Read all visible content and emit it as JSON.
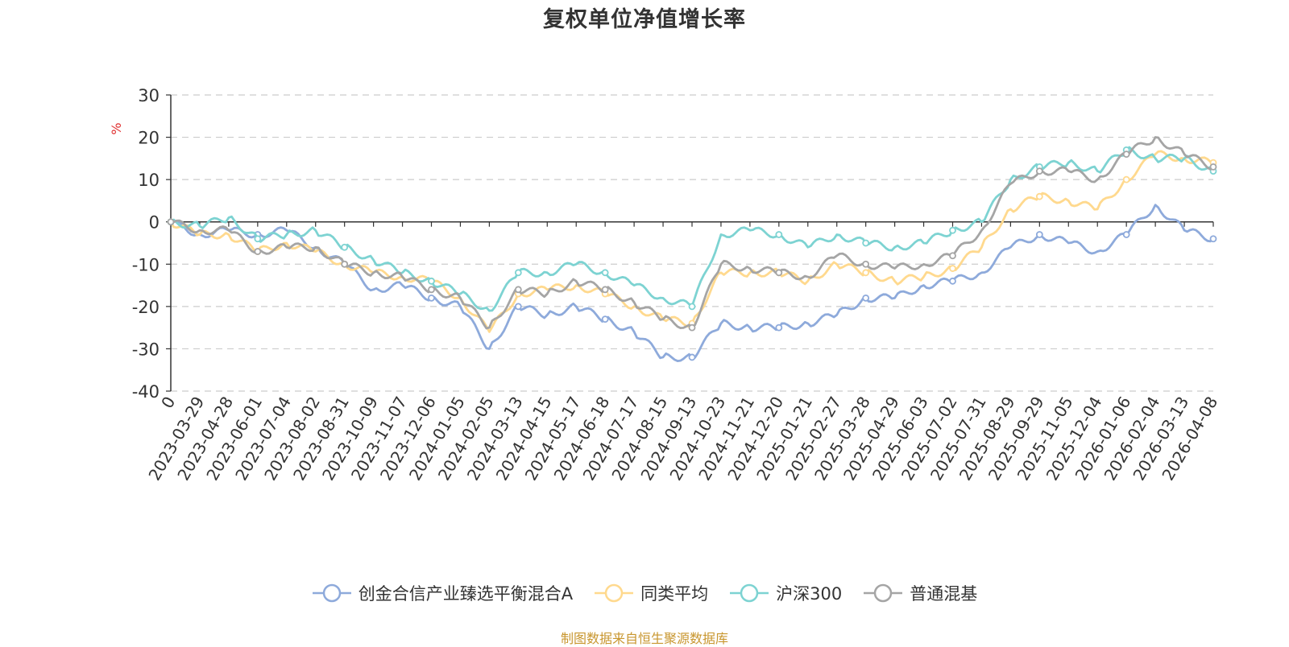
{
  "page": {
    "title": "复权单位净值增长率",
    "source_note": "制图数据来自恒生聚源数据库"
  },
  "chart_data": {
    "type": "line",
    "title": "复权单位净值增长率",
    "ylabel": "%",
    "ylim": [
      -40,
      30
    ],
    "yticks": [
      30,
      20,
      10,
      0,
      -10,
      -20,
      -30,
      -40
    ],
    "grid": true,
    "legend_position": "bottom",
    "x_tick_labels": [
      "0",
      "2023-03-29",
      "2023-04-28",
      "2023-06-01",
      "2023-07-04",
      "2023-08-02",
      "2023-08-31",
      "2023-10-09",
      "2023-11-07",
      "2023-12-06",
      "2024-01-05",
      "2024-02-05",
      "2024-03-13",
      "2024-04-15",
      "2024-05-17",
      "2024-06-18",
      "2024-07-17",
      "2024-08-15",
      "2024-09-13",
      "2024-10-23",
      "2024-11-21",
      "2024-12-20",
      "2025-01-21",
      "2025-02-27",
      "2025-03-28",
      "2025-04-29",
      "2025-06-03",
      "2025-07-02",
      "2025-07-31",
      "2025-08-29",
      "2025-09-29",
      "2025-11-05",
      "2025-12-04",
      "2026-01-06",
      "2026-02-04",
      "2026-03-13",
      "2026-04-08"
    ],
    "series": [
      {
        "name": "创金合信产业臻选平衡混合A",
        "color": "#8eaadb",
        "values": [
          0,
          -3,
          -2,
          -3,
          -2,
          -6,
          -10,
          -16,
          -15,
          -18,
          -20,
          -30,
          -20,
          -22,
          -20,
          -23,
          -26,
          -32,
          -32,
          -24,
          -25,
          -25,
          -24,
          -22,
          -18,
          -18,
          -15,
          -14,
          -12,
          -6,
          -3,
          -5,
          -7,
          -3,
          4,
          -2,
          -4
        ]
      },
      {
        "name": "同类平均",
        "color": "#ffd98e",
        "values": [
          0,
          -3,
          -3,
          -7,
          -5,
          -7,
          -10,
          -12,
          -13,
          -14,
          -18,
          -26,
          -17,
          -16,
          -15,
          -17,
          -20,
          -23,
          -24,
          -12,
          -12,
          -12,
          -14,
          -10,
          -12,
          -14,
          -13,
          -11,
          -6,
          3,
          6,
          5,
          3,
          10,
          16,
          15,
          14
        ]
      },
      {
        "name": "沪深300",
        "color": "#7dd3d2",
        "values": [
          0,
          -1,
          1,
          -4,
          -3,
          -2,
          -6,
          -9,
          -12,
          -14,
          -17,
          -21,
          -12,
          -12,
          -10,
          -12,
          -15,
          -18,
          -20,
          -3,
          -2,
          -3,
          -6,
          -3,
          -5,
          -6,
          -5,
          -2,
          0,
          10,
          13,
          14,
          12,
          17,
          15,
          15,
          12
        ]
      },
      {
        "name": "普通混基",
        "color": "#a5a5a5",
        "values": [
          0,
          -2,
          -2,
          -7,
          -6,
          -6,
          -10,
          -12,
          -13,
          -16,
          -18,
          -25,
          -16,
          -17,
          -14,
          -16,
          -19,
          -23,
          -25,
          -10,
          -11,
          -12,
          -13,
          -8,
          -10,
          -11,
          -10,
          -8,
          -2,
          9,
          12,
          12,
          10,
          16,
          20,
          16,
          13
        ]
      }
    ]
  }
}
